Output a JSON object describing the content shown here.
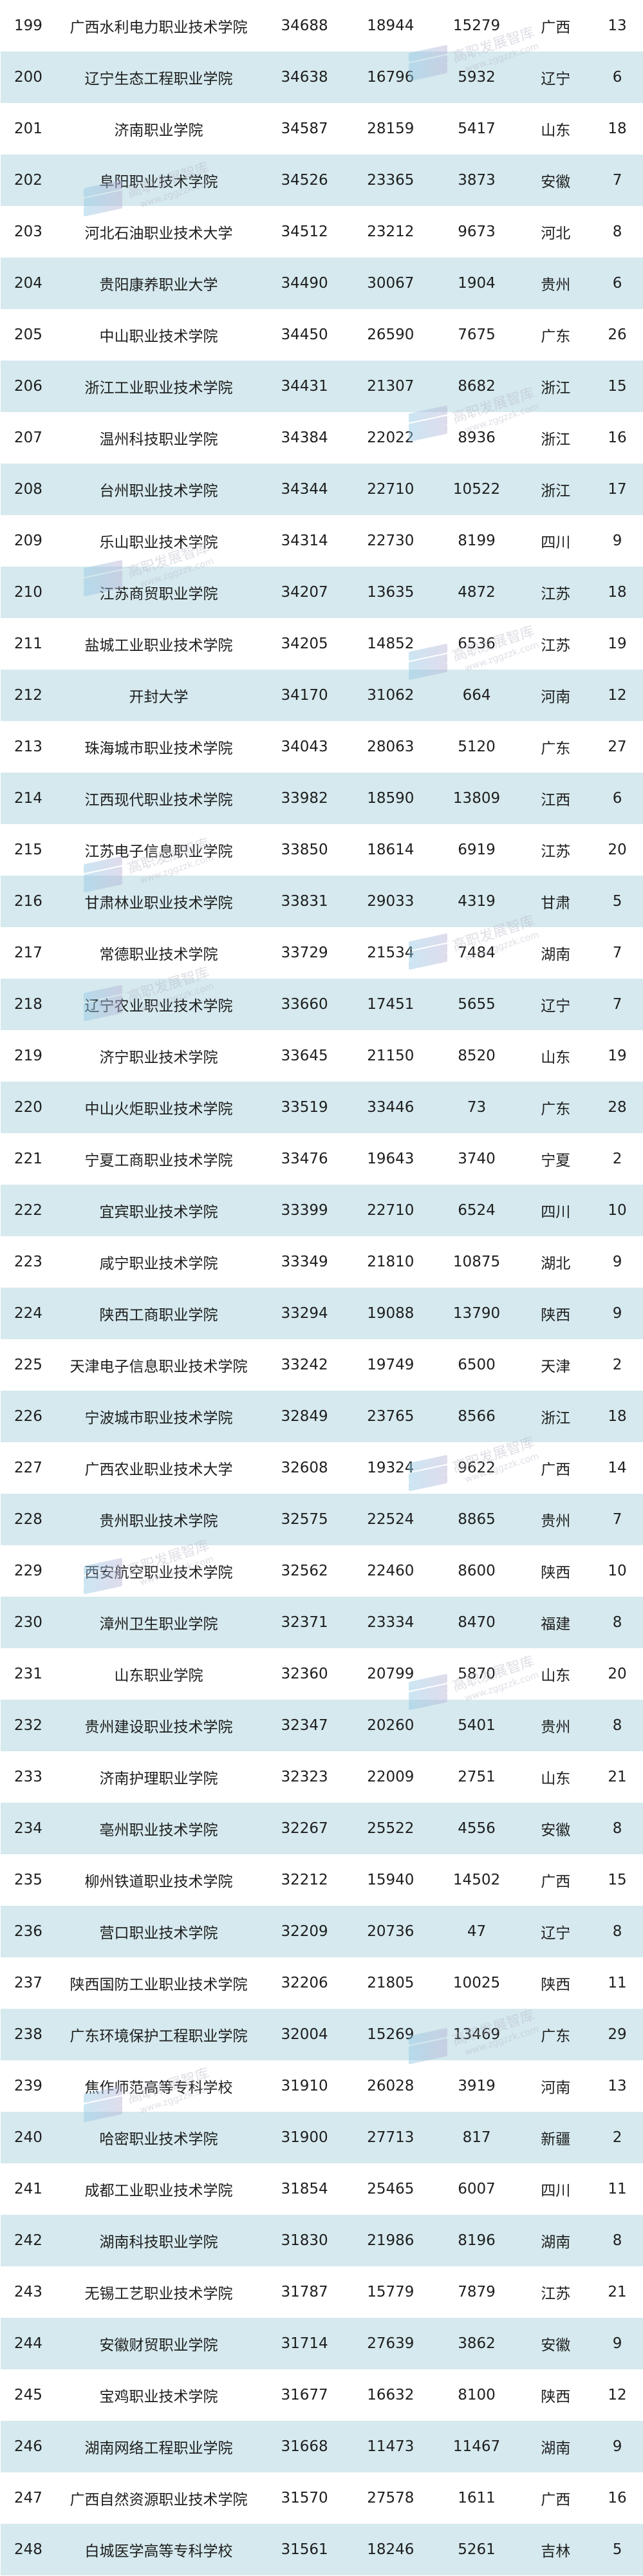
{
  "colors": {
    "row_alt": "#d5e9ee",
    "row": "#ffffff",
    "text": "#1e1e1e"
  },
  "watermark": {
    "title": "高职发展智库",
    "url": "www.zggzzk.com"
  },
  "rows": [
    [
      "199",
      "广西水利电力职业技术学院",
      "34688",
      "18944",
      "15279",
      "广西",
      "13"
    ],
    [
      "200",
      "辽宁生态工程职业学院",
      "34638",
      "16796",
      "5932",
      "辽宁",
      "6"
    ],
    [
      "201",
      "济南职业学院",
      "34587",
      "28159",
      "5417",
      "山东",
      "18"
    ],
    [
      "202",
      "阜阳职业技术学院",
      "34526",
      "23365",
      "3873",
      "安徽",
      "7"
    ],
    [
      "203",
      "河北石油职业技术大学",
      "34512",
      "23212",
      "9673",
      "河北",
      "8"
    ],
    [
      "204",
      "贵阳康养职业大学",
      "34490",
      "30067",
      "1904",
      "贵州",
      "6"
    ],
    [
      "205",
      "中山职业技术学院",
      "34450",
      "26590",
      "7675",
      "广东",
      "26"
    ],
    [
      "206",
      "浙江工业职业技术学院",
      "34431",
      "21307",
      "8682",
      "浙江",
      "15"
    ],
    [
      "207",
      "温州科技职业学院",
      "34384",
      "22022",
      "8936",
      "浙江",
      "16"
    ],
    [
      "208",
      "台州职业技术学院",
      "34344",
      "22710",
      "10522",
      "浙江",
      "17"
    ],
    [
      "209",
      "乐山职业技术学院",
      "34314",
      "22730",
      "8199",
      "四川",
      "9"
    ],
    [
      "210",
      "江苏商贸职业学院",
      "34207",
      "13635",
      "4872",
      "江苏",
      "18"
    ],
    [
      "211",
      "盐城工业职业技术学院",
      "34205",
      "14852",
      "6536",
      "江苏",
      "19"
    ],
    [
      "212",
      "开封大学",
      "34170",
      "31062",
      "664",
      "河南",
      "12"
    ],
    [
      "213",
      "珠海城市职业技术学院",
      "34043",
      "28063",
      "5120",
      "广东",
      "27"
    ],
    [
      "214",
      "江西现代职业技术学院",
      "33982",
      "18590",
      "13809",
      "江西",
      "6"
    ],
    [
      "215",
      "江苏电子信息职业学院",
      "33850",
      "18614",
      "6919",
      "江苏",
      "20"
    ],
    [
      "216",
      "甘肃林业职业技术学院",
      "33831",
      "29033",
      "4319",
      "甘肃",
      "5"
    ],
    [
      "217",
      "常德职业技术学院",
      "33729",
      "21534",
      "7484",
      "湖南",
      "7"
    ],
    [
      "218",
      "辽宁农业职业技术学院",
      "33660",
      "17451",
      "5655",
      "辽宁",
      "7"
    ],
    [
      "219",
      "济宁职业技术学院",
      "33645",
      "21150",
      "8520",
      "山东",
      "19"
    ],
    [
      "220",
      "中山火炬职业技术学院",
      "33519",
      "33446",
      "73",
      "广东",
      "28"
    ],
    [
      "221",
      "宁夏工商职业技术学院",
      "33476",
      "19643",
      "3740",
      "宁夏",
      "2"
    ],
    [
      "222",
      "宜宾职业技术学院",
      "33399",
      "22710",
      "6524",
      "四川",
      "10"
    ],
    [
      "223",
      "咸宁职业技术学院",
      "33349",
      "21810",
      "10875",
      "湖北",
      "9"
    ],
    [
      "224",
      "陕西工商职业学院",
      "33294",
      "19088",
      "13790",
      "陕西",
      "9"
    ],
    [
      "225",
      "天津电子信息职业技术学院",
      "33242",
      "19749",
      "6500",
      "天津",
      "2"
    ],
    [
      "226",
      "宁波城市职业技术学院",
      "32849",
      "23765",
      "8566",
      "浙江",
      "18"
    ],
    [
      "227",
      "广西农业职业技术大学",
      "32608",
      "19324",
      "9622",
      "广西",
      "14"
    ],
    [
      "228",
      "贵州职业技术学院",
      "32575",
      "22524",
      "8865",
      "贵州",
      "7"
    ],
    [
      "229",
      "西安航空职业技术学院",
      "32562",
      "22460",
      "8600",
      "陕西",
      "10"
    ],
    [
      "230",
      "漳州卫生职业学院",
      "32371",
      "23334",
      "8470",
      "福建",
      "8"
    ],
    [
      "231",
      "山东职业学院",
      "32360",
      "20799",
      "5870",
      "山东",
      "20"
    ],
    [
      "232",
      "贵州建设职业技术学院",
      "32347",
      "20260",
      "5401",
      "贵州",
      "8"
    ],
    [
      "233",
      "济南护理职业学院",
      "32323",
      "22009",
      "2751",
      "山东",
      "21"
    ],
    [
      "234",
      "亳州职业技术学院",
      "32267",
      "25522",
      "4556",
      "安徽",
      "8"
    ],
    [
      "235",
      "柳州铁道职业技术学院",
      "32212",
      "15940",
      "14502",
      "广西",
      "15"
    ],
    [
      "236",
      "营口职业技术学院",
      "32209",
      "20736",
      "47",
      "辽宁",
      "8"
    ],
    [
      "237",
      "陕西国防工业职业技术学院",
      "32206",
      "21805",
      "10025",
      "陕西",
      "11"
    ],
    [
      "238",
      "广东环境保护工程职业学院",
      "32004",
      "15269",
      "13469",
      "广东",
      "29"
    ],
    [
      "239",
      "焦作师范高等专科学校",
      "31910",
      "26028",
      "3919",
      "河南",
      "13"
    ],
    [
      "240",
      "哈密职业技术学院",
      "31900",
      "27713",
      "817",
      "新疆",
      "2"
    ],
    [
      "241",
      "成都工业职业技术学院",
      "31854",
      "25465",
      "6007",
      "四川",
      "11"
    ],
    [
      "242",
      "湖南科技职业学院",
      "31830",
      "21986",
      "8196",
      "湖南",
      "8"
    ],
    [
      "243",
      "无锡工艺职业技术学院",
      "31787",
      "15779",
      "7879",
      "江苏",
      "21"
    ],
    [
      "244",
      "安徽财贸职业学院",
      "31714",
      "27639",
      "3862",
      "安徽",
      "9"
    ],
    [
      "245",
      "宝鸡职业技术学院",
      "31677",
      "16632",
      "8100",
      "陕西",
      "12"
    ],
    [
      "246",
      "湖南网络工程职业学院",
      "31668",
      "11473",
      "11467",
      "湖南",
      "9"
    ],
    [
      "247",
      "广西自然资源职业技术学院",
      "31570",
      "27578",
      "1611",
      "广西",
      "16"
    ],
    [
      "248",
      "白城医学高等专科学校",
      "31561",
      "18246",
      "5261",
      "吉林",
      "5"
    ]
  ]
}
